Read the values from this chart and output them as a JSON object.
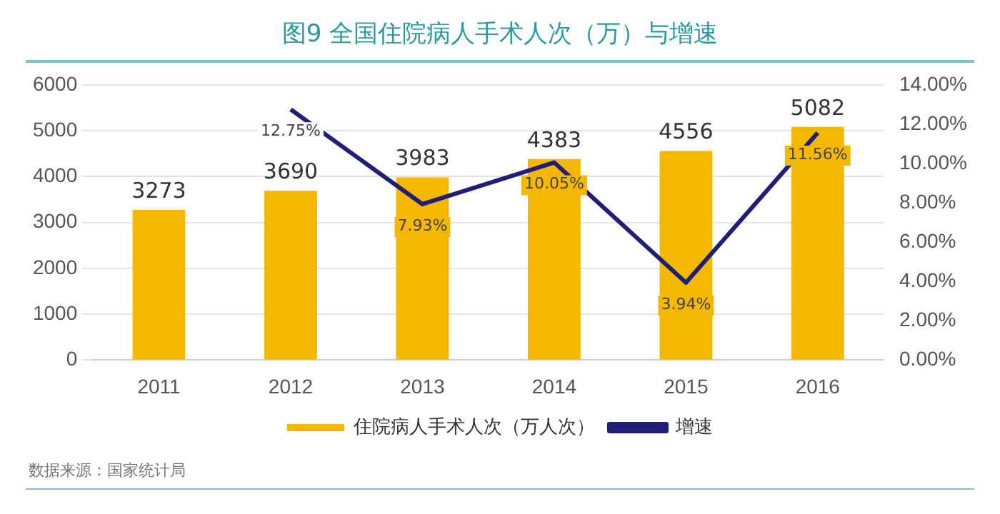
{
  "chart_data": {
    "type": "bar",
    "title": "图9  全国住院病人手术人次（万）与增速",
    "categories": [
      "2011",
      "2012",
      "2013",
      "2014",
      "2015",
      "2016"
    ],
    "series": [
      {
        "name": "住院病人手术人次（万人次）",
        "color": "#f5b800",
        "values": [
          3273,
          3690,
          3983,
          4383,
          4556,
          5082
        ],
        "value_labels": [
          "3273",
          "3690",
          "3983",
          "4383",
          "4556",
          "5082"
        ]
      },
      {
        "name": "增速",
        "type": "line",
        "axis": "y2",
        "color": "#1f1f7a",
        "values": [
          null,
          12.75,
          7.93,
          10.05,
          3.94,
          11.56
        ],
        "value_labels": [
          null,
          "12.75%",
          "7.93%",
          "10.05%",
          "3.94%",
          "11.56%"
        ]
      }
    ],
    "ylim": [
      0,
      6000
    ],
    "yticks": [
      0,
      1000,
      2000,
      3000,
      4000,
      5000,
      6000
    ],
    "y2lim": [
      0,
      14
    ],
    "y2ticks": [
      {
        "value": 0,
        "label": "0.00%"
      },
      {
        "value": 2,
        "label": "2.00%"
      },
      {
        "value": 4,
        "label": "4.00%"
      },
      {
        "value": 6,
        "label": "6.00%"
      },
      {
        "value": 8,
        "label": "8.00%"
      },
      {
        "value": 10,
        "label": "10.00%"
      },
      {
        "value": 12,
        "label": "12.00%"
      },
      {
        "value": 14,
        "label": "14.00%"
      }
    ],
    "grid": "y",
    "legend": "bottom",
    "marker": "none",
    "line_style": "solid",
    "annotations": [
      "数据来源：国家统计局"
    ]
  }
}
